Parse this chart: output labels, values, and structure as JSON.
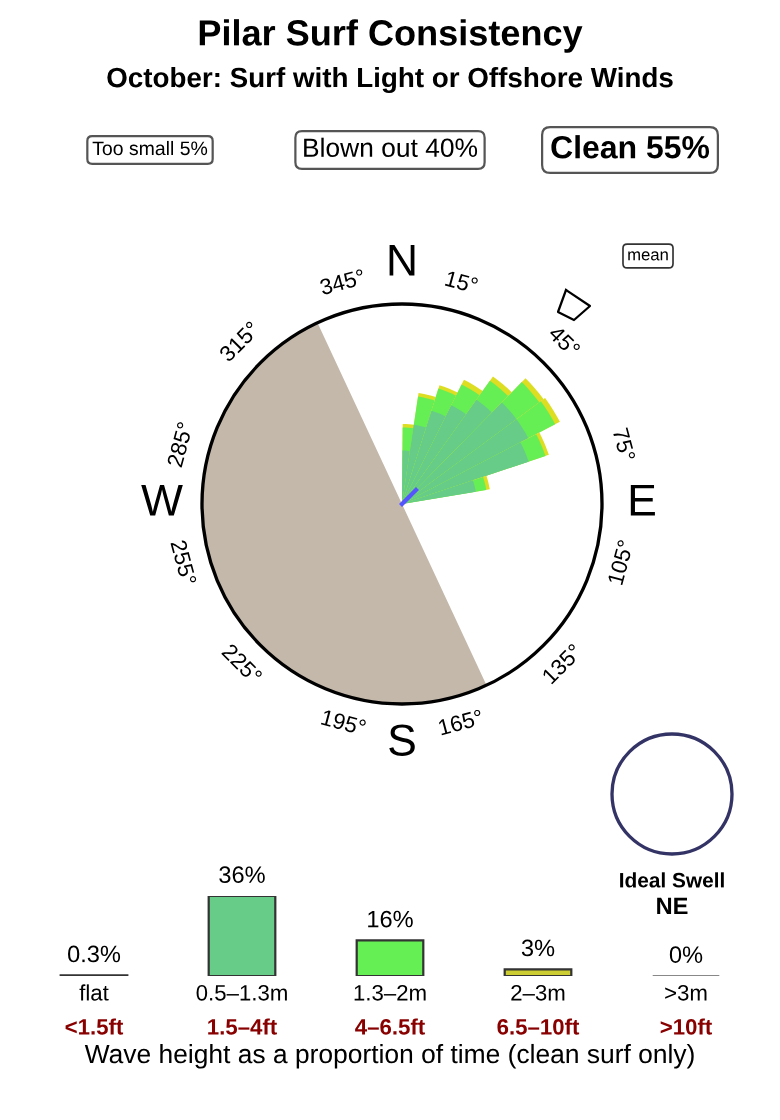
{
  "chart_data": [
    {
      "type": "other",
      "title": "Pilar Surf Consistency",
      "subtitle": "October: Surf with Light or Offshore Winds",
      "annotations": [
        "Too small 5%",
        "Blown out 40%",
        "Clean 55%",
        "N",
        "15°",
        "45°",
        "75°",
        "E",
        "105°",
        "135°",
        "165°",
        "S",
        "195°",
        "225°",
        "255°",
        "W",
        "285°",
        "315°",
        "345°",
        "mean",
        "Ideal Swell",
        "NE"
      ]
    },
    {
      "type": "bar",
      "categories": [
        "flat",
        "0.5–1.3m",
        "1.3–2m",
        "2–3m",
        ">3m"
      ],
      "values": [
        0.3,
        36,
        16,
        3,
        0
      ],
      "value_labels": [
        "0.3%",
        "36%",
        "16%",
        "3%",
        "0%"
      ],
      "colors": [
        "#ffffff",
        "#66cc88",
        "#66ee55",
        "#cccc33",
        "#888888"
      ],
      "annotations": [
        "<1.5ft",
        "1.5–4ft",
        "4–6.5ft",
        "6.5–10ft",
        ">10ft"
      ],
      "xlabel": "Wave height as a proportion of time (clean surf only)"
    }
  ]
}
